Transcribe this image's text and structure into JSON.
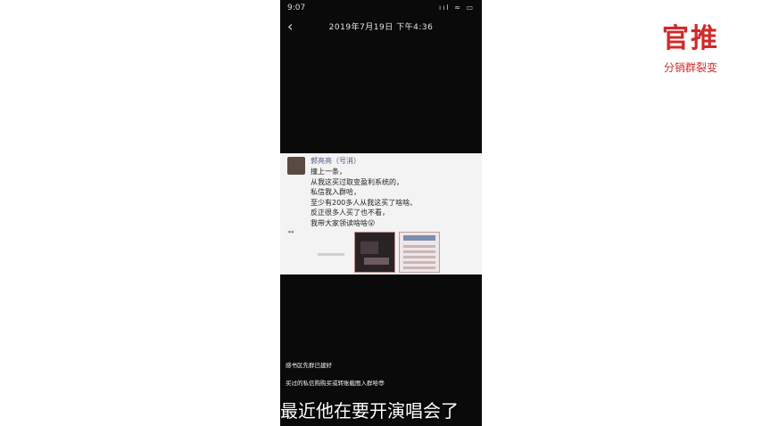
{
  "status_bar": {
    "time": "9:07",
    "icons": "ııl ≈ ▭"
  },
  "top_bar": {
    "back_icon": "back-chevron-icon",
    "date": "2019年7月19日 下午4:36"
  },
  "post": {
    "author": "郭亮亮（号消）",
    "lines": [
      "撞上一条，",
      "从我这买过取变盈利系统的，",
      "私信我入群哈，",
      "至少有200多人从我这买了啥啥、",
      "反正很多人买了也不看，",
      "我带大家领读啥啥😮"
    ],
    "mark": "◂◂"
  },
  "notices": [
    "感书区先群已建好",
    "买过的私信购购买或转账截图入群哈😎"
  ],
  "subtitle": "最近他在要开演唱会了",
  "logo": {
    "main": "官推",
    "sub": "分销群裂变",
    "color": "#cf2a2a"
  }
}
